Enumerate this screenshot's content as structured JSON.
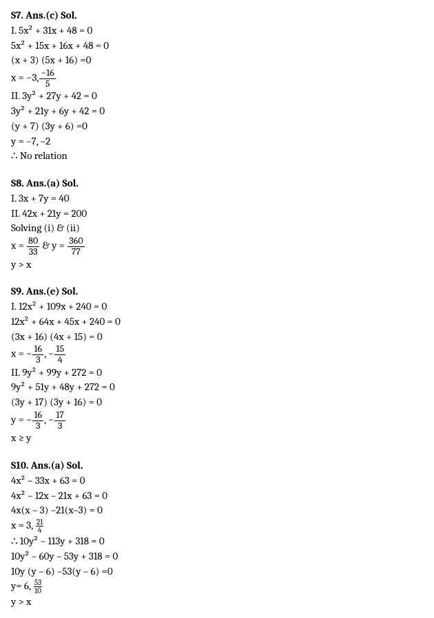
{
  "s7": {
    "heading": "S7. Ans.(c) Sol.",
    "l1": "I. 5x² + 31x + 48 = 0",
    "l2": "5x² + 15x + 16x + 48 = 0",
    "l3": "(x + 3) (5x + 16) =0",
    "l4_pre": "x =  −3,",
    "l4_num": "−16",
    "l4_den": "5",
    "l5": "II. 3y² + 27y + 42 = 0",
    "l6": "3y² + 21y + 6y + 42 = 0",
    "l7": "(y + 7) (3y + 6) =0",
    "l8": "y = –7, –2",
    "l9": "∴ No relation"
  },
  "s8": {
    "heading": "S8. Ans.(a) Sol.",
    "l1": "I. 3x + 7y = 40",
    "l2": "II. 42x + 21y = 200",
    "l3": "Solving (i) & (ii)",
    "l4_xpre": "x =",
    "l4_xnum": "80",
    "l4_xden": "33",
    "l4_mid": " & y =",
    "l4_ynum": "360",
    "l4_yden": "77",
    "l5": "y > x"
  },
  "s9": {
    "heading": "S9. Ans.(e) Sol.",
    "l1": "I. 12x² + 109x + 240 = 0",
    "l2": "12x² + 64x + 45x + 240 = 0",
    "l3": "(3x + 16) (4x + 15) = 0",
    "l4_pre": "x =  −",
    "l4_n1": "16",
    "l4_d1": "3",
    "l4_mid": ", −",
    "l4_n2": "15",
    "l4_d2": "4",
    "l5": "II. 9y² + 99y + 272 = 0",
    "l6": "9y² + 51y + 48y + 272 = 0",
    "l7": "(3y + 17) (3y + 16) = 0",
    "l8_pre": "y = −",
    "l8_n1": "16",
    "l8_d1": "3",
    "l8_mid": ", −",
    "l8_n2": "17",
    "l8_d2": "3",
    "l9": "x ≥ y"
  },
  "s10": {
    "heading": "S10. Ans.(a) Sol.",
    "l1": "4x² – 33x + 63 = 0",
    "l2": "4x² – 12x – 21x + 63 = 0",
    "l3": "4x(x – 3) –21(x–3) = 0",
    "l4_pre": "x = 3, ",
    "l4_num": "21",
    "l4_den": "4",
    "l5": "∴ 10y² – 113y + 318 = 0",
    "l6": "10y² – 60y – 53y + 318 = 0",
    "l7": "10y (y – 6) –53(y – 6) =0",
    "l8_pre": "y= 6, ",
    "l8_num": "53",
    "l8_den": "10",
    "l9": "y > x"
  }
}
